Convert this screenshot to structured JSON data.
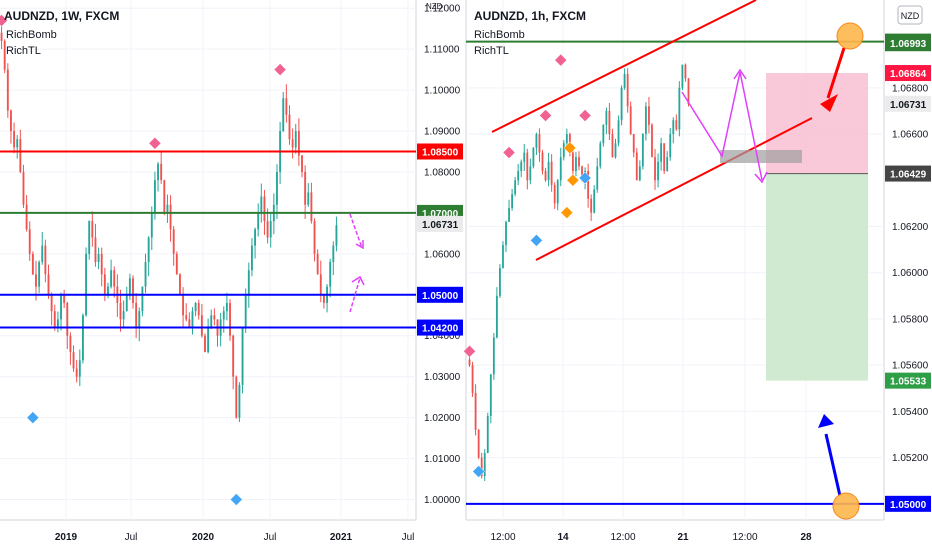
{
  "chart_data": [
    {
      "type": "candlestick",
      "title": "AUDNZD, 1W, FXCM",
      "indicators": [
        "RichBomb",
        "RichTL"
      ],
      "currency": "NZD",
      "ylim": [
        0.995,
        1.122
      ],
      "y_ticks": [
        "1.12000",
        "1.11000",
        "1.10000",
        "1.09000",
        "1.08000",
        "1.07000",
        "1.06000",
        "1.05000",
        "1.04000",
        "1.03000",
        "1.02000",
        "1.01000",
        "1.00000"
      ],
      "x_ticks": [
        "2019",
        "Jul",
        "2020",
        "Jul",
        "2021",
        "Jul"
      ],
      "hlines": [
        {
          "value": 1.085,
          "label": "1.08500",
          "color": "#ff0000"
        },
        {
          "value": 1.07,
          "label": "1.07000",
          "color": "#2e7d32"
        },
        {
          "value": 1.05,
          "label": "1.05000",
          "color": "#0000ff"
        },
        {
          "value": 1.042,
          "label": "1.04200",
          "color": "#0000ff"
        }
      ],
      "last_price": {
        "value": 1.06731,
        "label": "1.06731"
      },
      "close_series": [
        1.112,
        1.105,
        1.095,
        1.09,
        1.086,
        1.088,
        1.08,
        1.072,
        1.066,
        1.06,
        1.055,
        1.052,
        1.058,
        1.062,
        1.055,
        1.05,
        1.046,
        1.042,
        1.044,
        1.05,
        1.048,
        1.04,
        1.036,
        1.032,
        1.03,
        1.034,
        1.045,
        1.06,
        1.068,
        1.064,
        1.058,
        1.06,
        1.055,
        1.05,
        1.052,
        1.056,
        1.052,
        1.048,
        1.044,
        1.046,
        1.05,
        1.054,
        1.048,
        1.042,
        1.046,
        1.052,
        1.058,
        1.064,
        1.07,
        1.078,
        1.082,
        1.078,
        1.07,
        1.072,
        1.066,
        1.06,
        1.055,
        1.05,
        1.045,
        1.044,
        1.042,
        1.046,
        1.048,
        1.045,
        1.04,
        1.036,
        1.042,
        1.045,
        1.044,
        1.04,
        1.044,
        1.046,
        1.048,
        1.04,
        1.03,
        1.02,
        1.028,
        1.042,
        1.05,
        1.056,
        1.062,
        1.066,
        1.07,
        1.074,
        1.068,
        1.064,
        1.068,
        1.072,
        1.08,
        1.09,
        1.098,
        1.094,
        1.088,
        1.086,
        1.09,
        1.084,
        1.08,
        1.072,
        1.075,
        1.068,
        1.06,
        1.055,
        1.05,
        1.048,
        1.052,
        1.058,
        1.062,
        1.067
      ],
      "markers": [
        {
          "i": 0,
          "value": 1.117,
          "type": "sell"
        },
        {
          "i": 10,
          "value": 1.02,
          "type": "buy"
        },
        {
          "i": 49,
          "value": 1.087,
          "type": "sell"
        },
        {
          "i": 75,
          "value": 1.0,
          "type": "buy"
        },
        {
          "i": 89,
          "value": 1.105,
          "type": "sell"
        }
      ]
    },
    {
      "type": "candlestick",
      "title": "AUDNZD, 1h, FXCM",
      "indicators": [
        "RichBomb",
        "RichTL"
      ],
      "currency": "NZD",
      "ylim": [
        1.0493,
        1.0718
      ],
      "y_ticks": [
        "1.06800",
        "1.06600",
        "1.06200",
        "1.06000",
        "1.05800",
        "1.05600",
        "1.05400",
        "1.05200"
      ],
      "x_ticks": [
        "12:00",
        "14",
        "12:00",
        "21",
        "12:00",
        "28"
      ],
      "hlines": [
        {
          "value": 1.07,
          "label": "1.07000",
          "color": "#2e7d32"
        },
        {
          "value": 1.05,
          "label": "1.05000",
          "color": "#0000ff"
        }
      ],
      "price_labels": [
        {
          "value": 1.06993,
          "label": "1.06993",
          "color": "#2e7d32"
        },
        {
          "value": 1.06864,
          "label": "1.06864",
          "color": "#ff1744"
        },
        {
          "value": 1.06731,
          "label": "1.06731",
          "color": "#888888"
        },
        {
          "value": 1.06429,
          "label": "1.06429",
          "color": "#444444"
        },
        {
          "value": 1.05533,
          "label": "1.05533",
          "color": "#2e9e47"
        }
      ],
      "position": {
        "entry": 1.06429,
        "stop": 1.06864,
        "target": 1.05533
      },
      "close_series": [
        1.056,
        1.0548,
        1.0532,
        1.052,
        1.0512,
        1.0522,
        1.0538,
        1.0556,
        1.0572,
        1.059,
        1.0602,
        1.0612,
        1.0622,
        1.0628,
        1.0634,
        1.064,
        1.0644,
        1.0648,
        1.0652,
        1.064,
        1.0646,
        1.0654,
        1.066,
        1.0652,
        1.0644,
        1.064,
        1.0648,
        1.0638,
        1.063,
        1.064,
        1.065,
        1.0656,
        1.066,
        1.0652,
        1.0644,
        1.065,
        1.0646,
        1.064,
        1.0644,
        1.0632,
        1.0626,
        1.0636,
        1.0646,
        1.0656,
        1.0664,
        1.067,
        1.066,
        1.065,
        1.0656,
        1.0666,
        1.068,
        1.0686,
        1.0672,
        1.066,
        1.0652,
        1.064,
        1.0646,
        1.066,
        1.0672,
        1.0664,
        1.065,
        1.064,
        1.0648,
        1.0656,
        1.0644,
        1.065,
        1.066,
        1.0666,
        1.0662,
        1.068,
        1.069,
        1.0684,
        1.0673
      ],
      "markers": [
        {
          "i": 0,
          "value": 1.0566,
          "type": "sell"
        },
        {
          "i": 3,
          "value": 1.0514,
          "type": "buy"
        },
        {
          "i": 13,
          "value": 1.0652,
          "type": "sell"
        },
        {
          "i": 22,
          "value": 1.0614,
          "type": "buy"
        },
        {
          "i": 25,
          "value": 1.0668,
          "type": "sell"
        },
        {
          "i": 30,
          "value": 1.0692,
          "type": "sell"
        },
        {
          "i": 33,
          "value": 1.0654,
          "type": "alt-sell"
        },
        {
          "i": 34,
          "value": 1.064,
          "type": "alt-buy"
        },
        {
          "i": 32,
          "value": 1.0626,
          "type": "alt-buy"
        },
        {
          "i": 38,
          "value": 1.0668,
          "type": "sell"
        },
        {
          "i": 38,
          "value": 1.0641,
          "type": "buy"
        }
      ]
    }
  ]
}
